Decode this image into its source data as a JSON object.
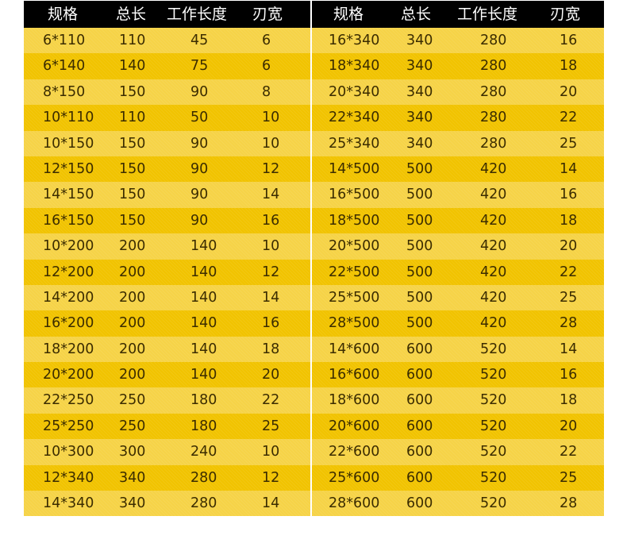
{
  "colors": {
    "header_bg": "#000000",
    "row_light": "#f6d347",
    "row_dark": "#f1c300",
    "text": "#3b2c00"
  },
  "headers": [
    "规格",
    "总长",
    "工作长度",
    "刃宽",
    "规格",
    "总长",
    "工作长度",
    "刃宽"
  ],
  "rows": [
    [
      "6*110",
      "110",
      "45",
      "6",
      "16*340",
      "340",
      "280",
      "16"
    ],
    [
      "6*140",
      "140",
      "75",
      "6",
      "18*340",
      "340",
      "280",
      "18"
    ],
    [
      "8*150",
      "150",
      "90",
      "8",
      "20*340",
      "340",
      "280",
      "20"
    ],
    [
      "10*110",
      "110",
      "50",
      "10",
      "22*340",
      "340",
      "280",
      "22"
    ],
    [
      "10*150",
      "150",
      "90",
      "10",
      "25*340",
      "340",
      "280",
      "25"
    ],
    [
      "12*150",
      "150",
      "90",
      "12",
      "14*500",
      "500",
      "420",
      "14"
    ],
    [
      "14*150",
      "150",
      "90",
      "14",
      "16*500",
      "500",
      "420",
      "16"
    ],
    [
      "16*150",
      "150",
      "90",
      "16",
      "18*500",
      "500",
      "420",
      "18"
    ],
    [
      "10*200",
      "200",
      "140",
      "10",
      "20*500",
      "500",
      "420",
      "20"
    ],
    [
      "12*200",
      "200",
      "140",
      "12",
      "22*500",
      "500",
      "420",
      "22"
    ],
    [
      "14*200",
      "200",
      "140",
      "14",
      "25*500",
      "500",
      "420",
      "25"
    ],
    [
      "16*200",
      "200",
      "140",
      "16",
      "28*500",
      "500",
      "420",
      "28"
    ],
    [
      "18*200",
      "200",
      "140",
      "18",
      "14*600",
      "600",
      "520",
      "14"
    ],
    [
      "20*200",
      "200",
      "140",
      "20",
      "16*600",
      "600",
      "520",
      "16"
    ],
    [
      "22*250",
      "250",
      "180",
      "22",
      "18*600",
      "600",
      "520",
      "18"
    ],
    [
      "25*250",
      "250",
      "180",
      "25",
      "20*600",
      "600",
      "520",
      "20"
    ],
    [
      "10*300",
      "300",
      "240",
      "10",
      "22*600",
      "600",
      "520",
      "22"
    ],
    [
      "12*340",
      "340",
      "280",
      "12",
      "25*600",
      "600",
      "520",
      "25"
    ],
    [
      "14*340",
      "340",
      "280",
      "14",
      "28*600",
      "600",
      "520",
      "28"
    ]
  ]
}
